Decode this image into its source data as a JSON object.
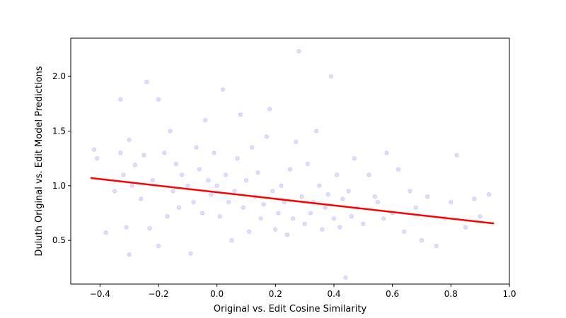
{
  "chart_data": {
    "type": "scatter",
    "title": "",
    "xlabel": "Original vs. Edit Cosine Similarity",
    "ylabel": "Duluth Original vs. Edit Model Predictions",
    "xlim": [
      -0.5,
      1.0
    ],
    "ylim": [
      0.1,
      2.35
    ],
    "xticks": [
      "−0.4",
      "−0.2",
      "0.0",
      "0.2",
      "0.4",
      "0.6",
      "0.8",
      "1.0"
    ],
    "yticks": [
      "0.5",
      "1.0",
      "1.5",
      "2.0"
    ],
    "grid": false,
    "legend": "none",
    "point_color": "#0000ff",
    "point_alpha": 0.12,
    "line_color": "#ff0000",
    "regression_line": {
      "x": [
        -0.43,
        0.945
      ],
      "y": [
        1.07,
        0.655
      ]
    },
    "series": [
      {
        "x": [
          -0.42,
          -0.41,
          -0.38,
          -0.35,
          -0.33,
          -0.33,
          -0.32,
          -0.31,
          -0.3,
          -0.3,
          -0.29,
          -0.28,
          -0.26,
          -0.25,
          -0.24,
          -0.23,
          -0.22,
          -0.2,
          -0.2,
          -0.18,
          -0.17,
          -0.16,
          -0.15,
          -0.14,
          -0.13,
          -0.12,
          -0.1,
          -0.09,
          -0.08,
          -0.07,
          -0.06,
          -0.05,
          -0.04,
          -0.03,
          -0.02,
          -0.01,
          0.0,
          0.01,
          0.02,
          0.03,
          0.04,
          0.05,
          0.06,
          0.07,
          0.08,
          0.09,
          0.1,
          0.11,
          0.12,
          0.13,
          0.14,
          0.15,
          0.16,
          0.17,
          0.18,
          0.19,
          0.2,
          0.21,
          0.22,
          0.23,
          0.24,
          0.25,
          0.26,
          0.27,
          0.28,
          0.29,
          0.3,
          0.31,
          0.32,
          0.33,
          0.34,
          0.35,
          0.36,
          0.37,
          0.38,
          0.39,
          0.4,
          0.41,
          0.42,
          0.43,
          0.44,
          0.45,
          0.46,
          0.47,
          0.48,
          0.5,
          0.52,
          0.54,
          0.55,
          0.57,
          0.58,
          0.6,
          0.62,
          0.64,
          0.66,
          0.68,
          0.7,
          0.72,
          0.75,
          0.78,
          0.8,
          0.82,
          0.85,
          0.88,
          0.9,
          0.93
        ],
        "y": [
          1.33,
          1.25,
          0.57,
          0.95,
          1.3,
          1.79,
          1.1,
          0.62,
          0.37,
          1.42,
          1.0,
          1.19,
          0.88,
          1.28,
          1.95,
          0.61,
          1.05,
          1.79,
          0.45,
          1.3,
          0.72,
          1.5,
          0.95,
          1.2,
          0.8,
          1.1,
          1.0,
          0.38,
          0.85,
          1.35,
          1.15,
          0.75,
          1.6,
          1.05,
          0.92,
          1.3,
          1.0,
          0.72,
          1.88,
          1.1,
          0.85,
          0.5,
          0.95,
          1.25,
          1.65,
          0.8,
          1.05,
          0.58,
          1.35,
          0.9,
          1.12,
          0.7,
          0.83,
          1.45,
          1.7,
          0.95,
          0.6,
          0.75,
          1.0,
          0.85,
          0.55,
          1.15,
          0.7,
          1.4,
          2.23,
          0.9,
          0.65,
          1.2,
          0.75,
          0.85,
          1.5,
          1.0,
          0.6,
          0.8,
          0.92,
          2.0,
          0.7,
          1.1,
          0.62,
          0.88,
          0.16,
          0.95,
          0.72,
          1.25,
          0.8,
          0.65,
          1.1,
          0.9,
          0.85,
          0.7,
          1.3,
          0.75,
          1.15,
          0.58,
          0.95,
          0.8,
          0.5,
          0.9,
          0.45,
          0.7,
          0.85,
          1.28,
          0.62,
          0.88,
          0.72,
          0.92
        ]
      }
    ]
  }
}
